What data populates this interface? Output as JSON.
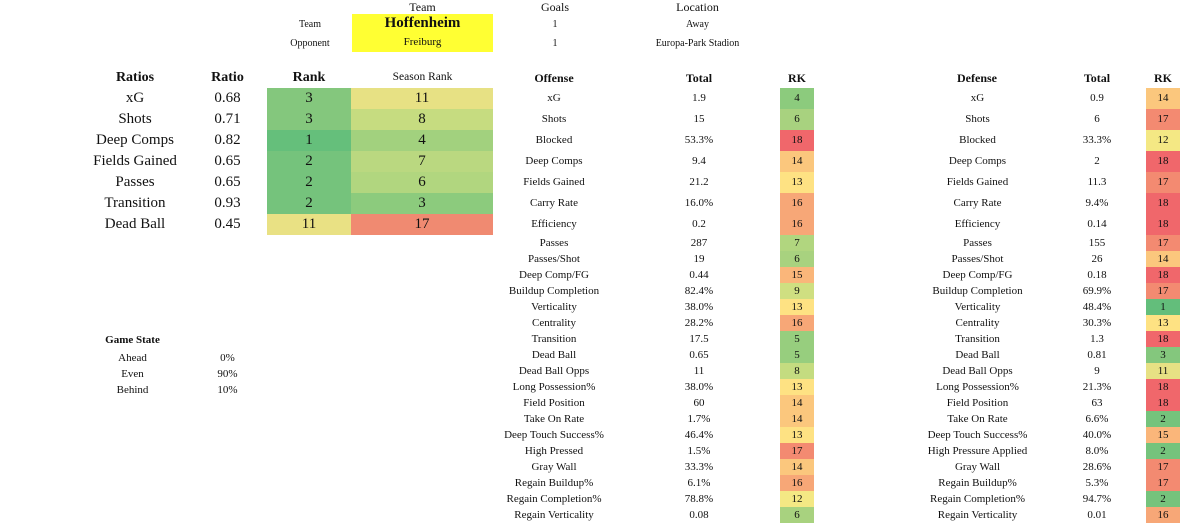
{
  "header": {
    "team_col": "Team",
    "goals_col": "Goals",
    "location_col": "Location",
    "team_label": "Team",
    "opponent_label": "Opponent",
    "team": "Hoffenheim",
    "opponent": "Freiburg",
    "team_goals": "1",
    "opp_goals": "1",
    "team_location": "Away",
    "opp_location": "Europa-Park Stadion"
  },
  "colors": {
    "highlight_yellow": "#ffff33",
    "green_dark": "#63be7b",
    "green": "#85c87c",
    "yellow": "#f5e884",
    "orange": "#f9bf7c",
    "red": "#f0686b"
  },
  "ratios": {
    "headers": {
      "name": "Ratios",
      "ratio": "Ratio",
      "rank": "Rank",
      "season": "Season Rank"
    },
    "rows": [
      {
        "name": "xG",
        "ratio": "0.68",
        "rank": "3",
        "season": "11",
        "rank_color": "#84c77d",
        "season_color": "#e7e184"
      },
      {
        "name": "Shots",
        "ratio": "0.71",
        "rank": "3",
        "season": "8",
        "rank_color": "#84c77d",
        "season_color": "#c6dc80"
      },
      {
        "name": "Deep Comps",
        "ratio": "0.82",
        "rank": "1",
        "season": "4",
        "rank_color": "#65bf7b",
        "season_color": "#a2d17e"
      },
      {
        "name": "Fields Gained",
        "ratio": "0.65",
        "rank": "2",
        "season": "7",
        "rank_color": "#75c37c",
        "season_color": "#bad880"
      },
      {
        "name": "Passes",
        "ratio": "0.65",
        "rank": "2",
        "season": "6",
        "rank_color": "#75c37c",
        "season_color": "#b1d67f"
      },
      {
        "name": "Transition",
        "ratio": "0.93",
        "rank": "2",
        "season": "3",
        "rank_color": "#75c37c",
        "season_color": "#8ccb7d"
      },
      {
        "name": "Dead Ball",
        "ratio": "0.45",
        "rank": "11",
        "season": "17",
        "rank_color": "#e9e184",
        "season_color": "#f08a71"
      }
    ]
  },
  "game_state": {
    "title": "Game State",
    "rows": [
      {
        "label": "Ahead",
        "value": "0%"
      },
      {
        "label": "Even",
        "value": "90%"
      },
      {
        "label": "Behind",
        "value": "10%"
      }
    ]
  },
  "offense": {
    "headers": {
      "name": "Offense",
      "total": "Total",
      "rk": "RK"
    },
    "rows": [
      {
        "name": "xG",
        "total": "1.9",
        "rk": "4",
        "color": "#8ccb7d"
      },
      {
        "name": "Shots",
        "total": "15",
        "rk": "6",
        "color": "#a8d27f"
      },
      {
        "name": "Blocked",
        "total": "53.3%",
        "rk": "18",
        "color": "#f0676b"
      },
      {
        "name": "Deep Comps",
        "total": "9.4",
        "rk": "14",
        "color": "#fbc77d"
      },
      {
        "name": "Fields Gained",
        "total": "21.2",
        "rk": "13",
        "color": "#fee283"
      },
      {
        "name": "Carry Rate",
        "total": "16.0%",
        "rk": "16",
        "color": "#f7a777"
      },
      {
        "name": "Efficiency",
        "total": "0.2",
        "rk": "16",
        "color": "#f7a777"
      },
      {
        "name": "Passes",
        "total": "287",
        "rk": "7",
        "color": "#b1d67f"
      },
      {
        "name": "Passes/Shot",
        "total": "19",
        "rk": "6",
        "color": "#a8d27f"
      },
      {
        "name": "Deep Comp/FG",
        "total": "0.44",
        "rk": "15",
        "color": "#fab67a"
      },
      {
        "name": "Buildup Completion",
        "total": "82.4%",
        "rk": "9",
        "color": "#cfdf81"
      },
      {
        "name": "Verticality",
        "total": "38.0%",
        "rk": "13",
        "color": "#fee283"
      },
      {
        "name": "Centrality",
        "total": "28.2%",
        "rk": "16",
        "color": "#f7a777"
      },
      {
        "name": "Transition",
        "total": "17.5",
        "rk": "5",
        "color": "#97ce7e"
      },
      {
        "name": "Dead Ball",
        "total": "0.65",
        "rk": "5",
        "color": "#97ce7e"
      },
      {
        "name": "Dead Ball Opps",
        "total": "11",
        "rk": "8",
        "color": "#c4dc80"
      },
      {
        "name": "Long Possession%",
        "total": "38.0%",
        "rk": "13",
        "color": "#fee283"
      },
      {
        "name": "Field Position",
        "total": "60",
        "rk": "14",
        "color": "#fbc77d"
      },
      {
        "name": "Take On Rate",
        "total": "1.7%",
        "rk": "14",
        "color": "#fbc77d"
      },
      {
        "name": "Deep Touch Success%",
        "total": "46.4%",
        "rk": "13",
        "color": "#fee283"
      },
      {
        "name": "High Pressed",
        "total": "1.5%",
        "rk": "17",
        "color": "#f38a71"
      },
      {
        "name": "Gray Wall",
        "total": "33.3%",
        "rk": "14",
        "color": "#fbc77d"
      },
      {
        "name": "Regain Buildup%",
        "total": "6.1%",
        "rk": "16",
        "color": "#f7a777"
      },
      {
        "name": "Regain Completion%",
        "total": "78.8%",
        "rk": "12",
        "color": "#f4e884"
      },
      {
        "name": "Regain Verticality",
        "total": "0.08",
        "rk": "6",
        "color": "#a8d27f"
      }
    ]
  },
  "defense": {
    "headers": {
      "name": "Defense",
      "total": "Total",
      "rk": "RK"
    },
    "rows": [
      {
        "name": "xG",
        "total": "0.9",
        "rk": "14",
        "color": "#fbc77d"
      },
      {
        "name": "Shots",
        "total": "6",
        "rk": "17",
        "color": "#f38a71"
      },
      {
        "name": "Blocked",
        "total": "33.3%",
        "rk": "12",
        "color": "#f4e884"
      },
      {
        "name": "Deep Comps",
        "total": "2",
        "rk": "18",
        "color": "#f0676b"
      },
      {
        "name": "Fields Gained",
        "total": "11.3",
        "rk": "17",
        "color": "#f38a71"
      },
      {
        "name": "Carry Rate",
        "total": "9.4%",
        "rk": "18",
        "color": "#f0676b"
      },
      {
        "name": "Efficiency",
        "total": "0.14",
        "rk": "18",
        "color": "#f0676b"
      },
      {
        "name": "Passes",
        "total": "155",
        "rk": "17",
        "color": "#f38a71"
      },
      {
        "name": "Passes/Shot",
        "total": "26",
        "rk": "14",
        "color": "#fbc77d"
      },
      {
        "name": "Deep Comp/FG",
        "total": "0.18",
        "rk": "18",
        "color": "#f0676b"
      },
      {
        "name": "Buildup Completion",
        "total": "69.9%",
        "rk": "17",
        "color": "#f38a71"
      },
      {
        "name": "Verticality",
        "total": "48.4%",
        "rk": "1",
        "color": "#63be7b"
      },
      {
        "name": "Centrality",
        "total": "30.3%",
        "rk": "13",
        "color": "#fee283"
      },
      {
        "name": "Transition",
        "total": "1.3",
        "rk": "18",
        "color": "#f0676b"
      },
      {
        "name": "Dead Ball",
        "total": "0.81",
        "rk": "3",
        "color": "#84c77d"
      },
      {
        "name": "Dead Ball Opps",
        "total": "9",
        "rk": "11",
        "color": "#e7e184"
      },
      {
        "name": "Long Possession%",
        "total": "21.3%",
        "rk": "18",
        "color": "#f0676b"
      },
      {
        "name": "Field Position",
        "total": "63",
        "rk": "18",
        "color": "#f0676b"
      },
      {
        "name": "Take On Rate",
        "total": "6.6%",
        "rk": "2",
        "color": "#75c37c"
      },
      {
        "name": "Deep Touch Success%",
        "total": "40.0%",
        "rk": "15",
        "color": "#fab67a"
      },
      {
        "name": "High Pressure Applied",
        "total": "8.0%",
        "rk": "2",
        "color": "#75c37c"
      },
      {
        "name": "Gray Wall",
        "total": "28.6%",
        "rk": "17",
        "color": "#f38a71"
      },
      {
        "name": "Regain Buildup%",
        "total": "5.3%",
        "rk": "17",
        "color": "#f38a71"
      },
      {
        "name": "Regain Completion%",
        "total": "94.7%",
        "rk": "2",
        "color": "#75c37c"
      },
      {
        "name": "Regain Verticality",
        "total": "0.01",
        "rk": "16",
        "color": "#f7a777"
      }
    ]
  }
}
